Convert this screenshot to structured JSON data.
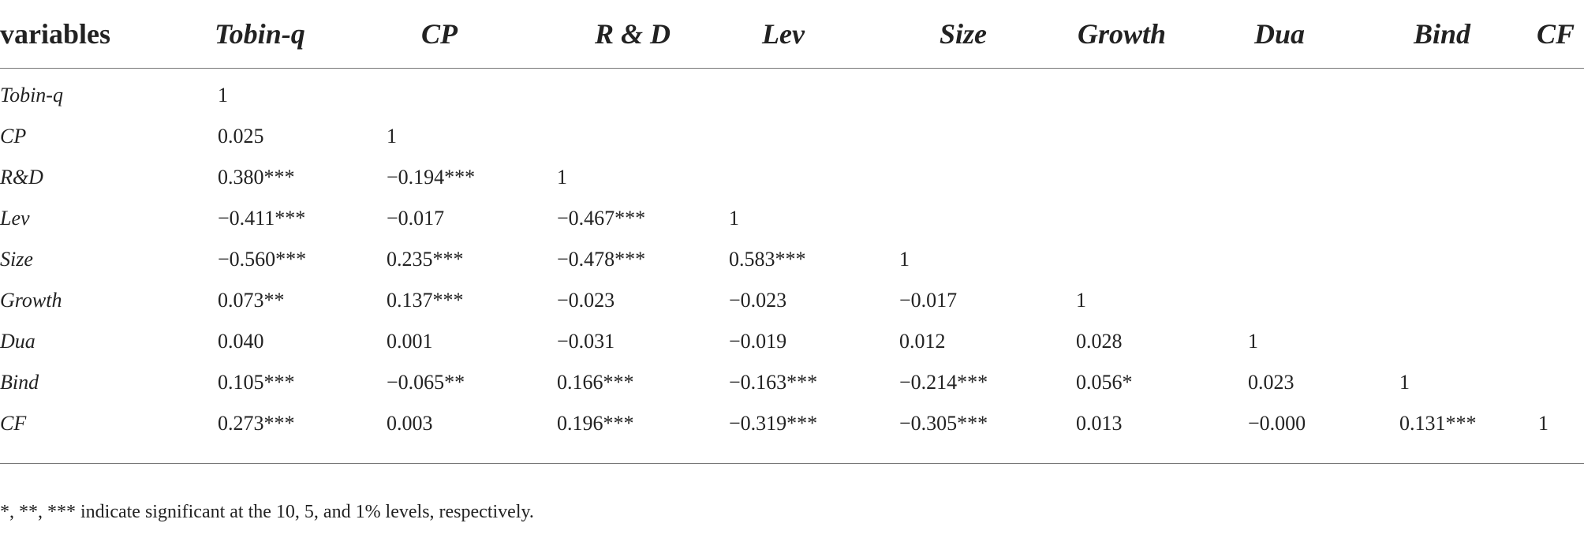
{
  "table": {
    "headers": [
      "variables",
      "Tobin-q",
      "CP",
      "R & D",
      "Lev",
      "Size",
      "Growth",
      "Dua",
      "Bind",
      "CF"
    ],
    "rows": [
      {
        "label": "Tobin-q",
        "cells": [
          "1",
          "",
          "",
          "",
          "",
          "",
          "",
          "",
          ""
        ]
      },
      {
        "label": "CP",
        "cells": [
          "0.025",
          "1",
          "",
          "",
          "",
          "",
          "",
          "",
          ""
        ]
      },
      {
        "label": "R&D",
        "cells": [
          "0.380***",
          "−0.194***",
          "1",
          "",
          "",
          "",
          "",
          "",
          ""
        ]
      },
      {
        "label": "Lev",
        "cells": [
          "−0.411***",
          "−0.017",
          "−0.467***",
          "1",
          "",
          "",
          "",
          "",
          ""
        ]
      },
      {
        "label": "Size",
        "cells": [
          "−0.560***",
          "0.235***",
          "−0.478***",
          "0.583***",
          "1",
          "",
          "",
          "",
          ""
        ]
      },
      {
        "label": "Growth",
        "cells": [
          "0.073**",
          "0.137***",
          "−0.023",
          "−0.023",
          "−0.017",
          "1",
          "",
          "",
          ""
        ]
      },
      {
        "label": "Dua",
        "cells": [
          "0.040",
          "0.001",
          "−0.031",
          "−0.019",
          "0.012",
          "0.028",
          "1",
          "",
          ""
        ]
      },
      {
        "label": "Bind",
        "cells": [
          "0.105***",
          "−0.065**",
          "0.166***",
          "−0.163***",
          "−0.214***",
          "0.056*",
          "0.023",
          "1",
          ""
        ]
      },
      {
        "label": "CF",
        "cells": [
          "0.273***",
          "0.003",
          "0.196***",
          "−0.319***",
          "−0.305***",
          "0.013",
          "−0.000",
          "0.131***",
          "1"
        ]
      }
    ]
  },
  "note": "*, **, *** indicate significant at the 10, 5, and 1% levels, respectively."
}
